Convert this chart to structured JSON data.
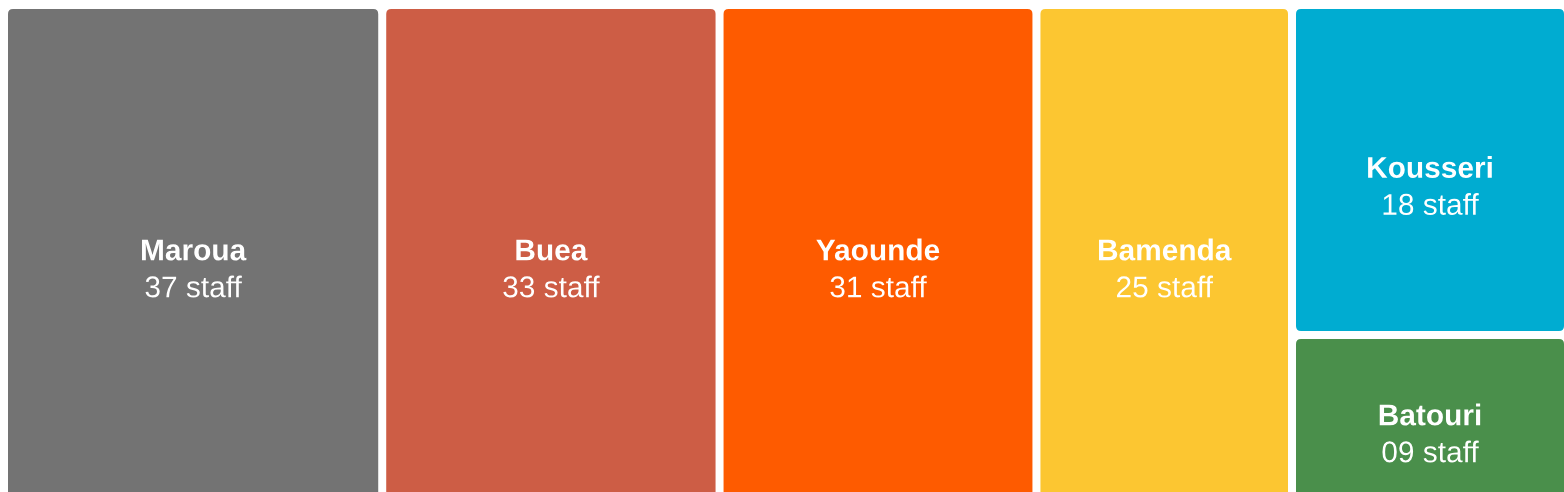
{
  "chart_data": {
    "type": "other",
    "categories": [
      "Maroua",
      "Buea",
      "Yaounde",
      "Bamenda",
      "Kousseri",
      "Batouri"
    ],
    "values": [
      37,
      33,
      31,
      25,
      18,
      9
    ],
    "value_labels": [
      "37 staff",
      "33 staff",
      "31 staff",
      "25 staff",
      "18 staff",
      "09 staff"
    ],
    "colors": [
      "#737373",
      "#cd5d45",
      "#fe5b00",
      "#fcc631",
      "#00acd1",
      "#4a8f4b"
    ]
  }
}
